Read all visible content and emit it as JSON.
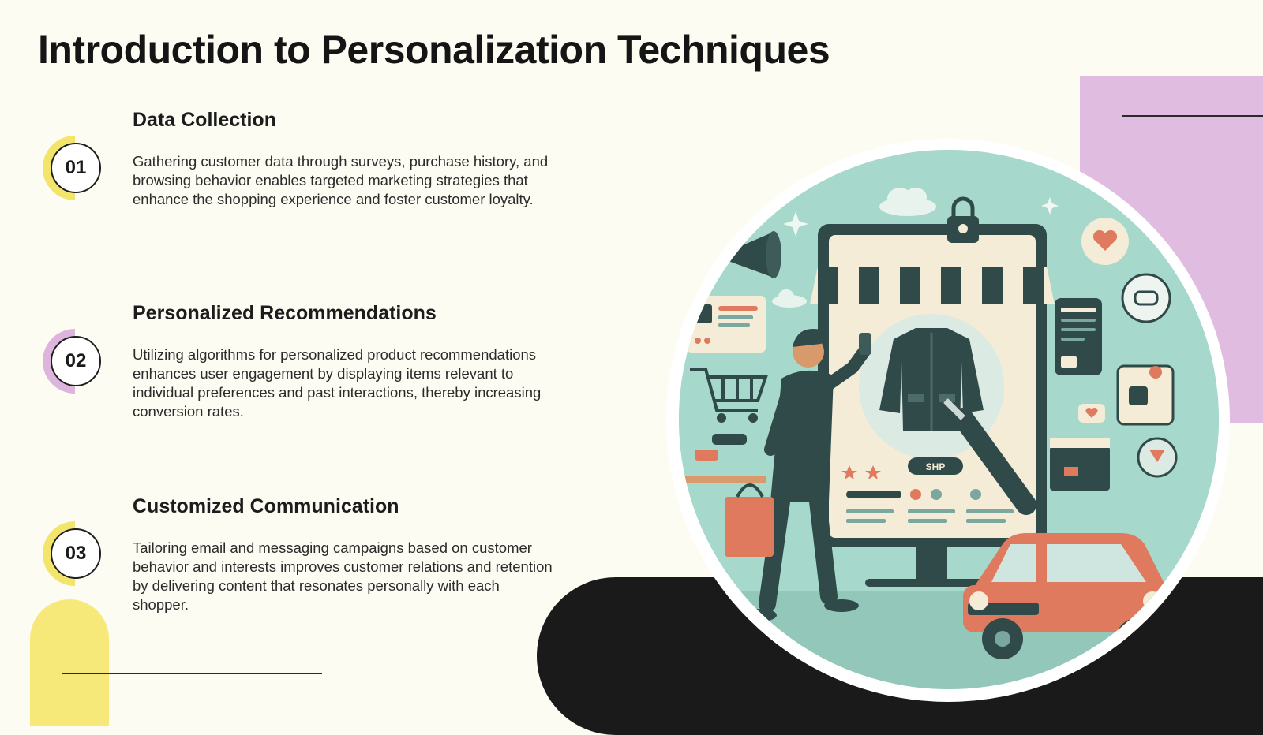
{
  "slide": {
    "title": "Introduction to Personalization Techniques"
  },
  "items": [
    {
      "number": "01",
      "heading": "Data Collection",
      "body": "Gathering customer data through surveys, purchase history, and browsing behavior enables targeted marketing strategies that enhance the shopping experience and foster customer loyalty.",
      "accent": "#f3e56b"
    },
    {
      "number": "02",
      "heading": "Personalized Recommendations",
      "body": "Utilizing algorithms for personalized product recommendations enhances user engagement by displaying items relevant to individual preferences and past interactions, thereby increasing conversion rates.",
      "accent": "#dcb4dc"
    },
    {
      "number": "03",
      "heading": "Customized Communication",
      "body": "Tailoring email and messaging campaigns based on customer behavior and interests improves customer relations and retention by delivering content that resonates personally with each shopper.",
      "accent": "#f3e56b"
    }
  ],
  "illustration": {
    "shop_button_label": "SHP",
    "colors": {
      "background": "#a7d8cc",
      "dark": "#2f4a48",
      "accent_red": "#e07a5f",
      "cream": "#f4ecd6"
    }
  },
  "colors": {
    "page_background": "#fdfcf3",
    "purple_shape": "#e0bde0",
    "yellow_shape": "#f6e97a",
    "black_shape": "#1a1a1a"
  }
}
